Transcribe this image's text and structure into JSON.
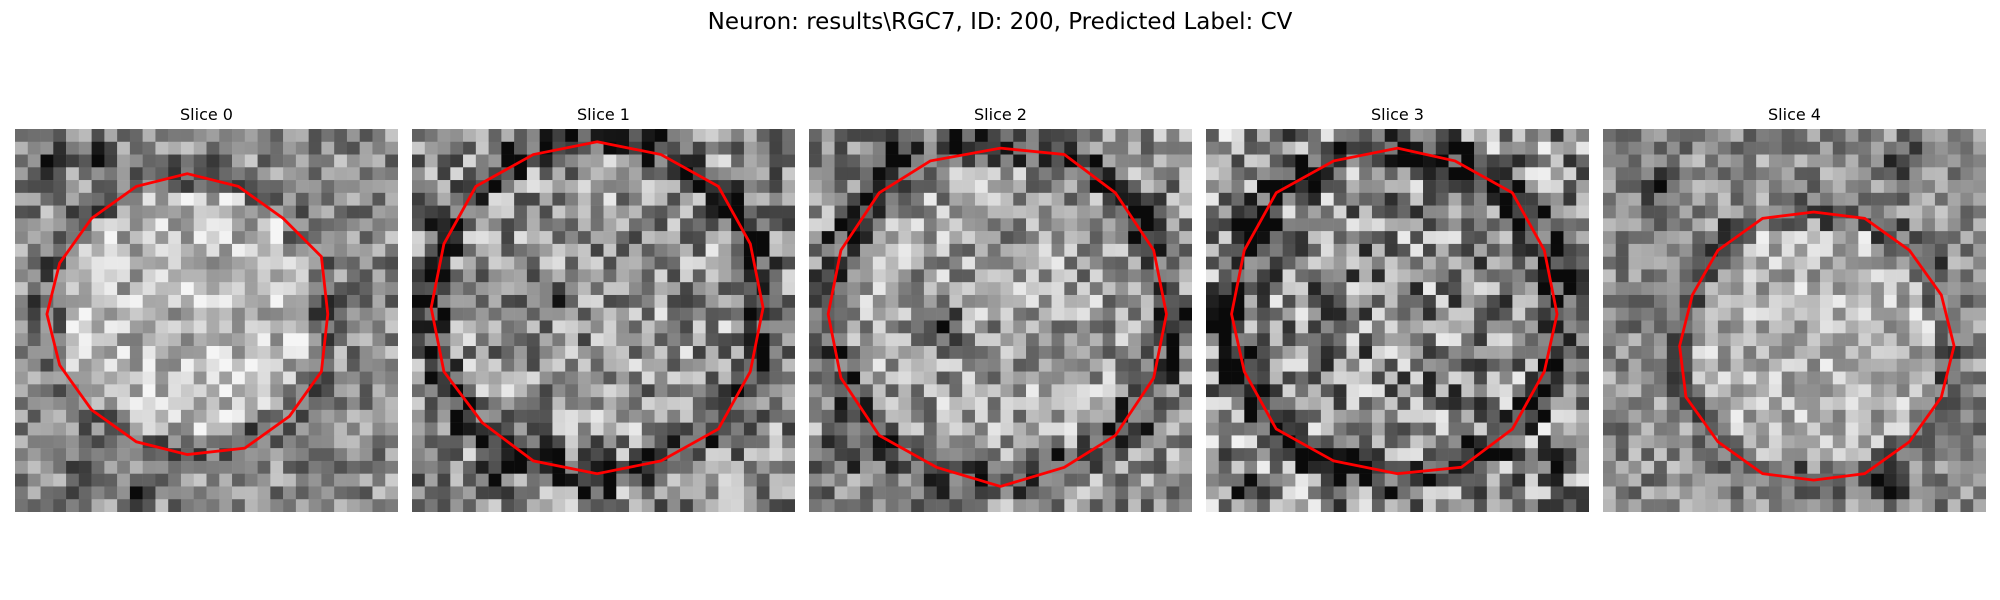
{
  "figure": {
    "title": "Neuron: results\\RGC7, ID: 200, Predicted Label: CV"
  },
  "panels": [
    {
      "title": "Slice 0"
    },
    {
      "title": "Slice 1"
    },
    {
      "title": "Slice 2"
    },
    {
      "title": "Slice 3"
    },
    {
      "title": "Slice 4"
    }
  ],
  "style": {
    "contour_color": "#ff0000",
    "colormap": "grayscale"
  }
}
